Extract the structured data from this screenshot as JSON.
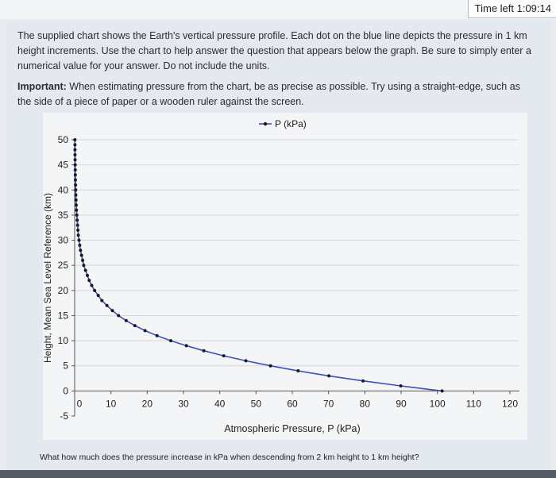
{
  "timer": {
    "label": "Time left 1:09:14"
  },
  "instructions": {
    "paragraph": "The supplied chart shows the Earth's vertical pressure profile. Each dot on the blue line depicts the pressure in 1 km height increments. Use the chart to help answer the question that appears below the graph. Be sure to simply enter a numerical value for your answer. Do not include the units.",
    "important_label": "Important:",
    "important_text": " When estimating pressure from the chart, be as precise as possible. Try using a straight-edge, such as the side of a piece of paper or a wooden ruler against the screen."
  },
  "question": "What how much does the pressure increase in kPa when descending from 2 km height to 1 km height?",
  "colors": {
    "series": "#3a4fc0",
    "grid": "#d5d8dc",
    "axis": "#555555"
  },
  "chart_data": {
    "type": "line",
    "title": "",
    "xlabel": "Atmospheric Pressure, P (kPa)",
    "ylabel": "Height, Mean Sea Level Reference (km)",
    "xlim": [
      0,
      120
    ],
    "ylim": [
      -5,
      50
    ],
    "x_ticks": [
      0,
      10,
      20,
      30,
      40,
      50,
      60,
      70,
      80,
      90,
      100,
      110,
      120
    ],
    "y_ticks": [
      -5,
      0,
      5,
      10,
      15,
      20,
      25,
      30,
      35,
      40,
      45,
      50
    ],
    "legend": "top",
    "grid": "horizontal",
    "series": [
      {
        "name": "P (kPa)",
        "x": [
          101.3,
          89.9,
          79.5,
          70.1,
          61.6,
          54.0,
          47.2,
          41.1,
          35.6,
          30.8,
          26.5,
          22.7,
          19.4,
          16.6,
          14.2,
          12.1,
          10.4,
          8.9,
          7.5,
          6.5,
          5.5,
          4.7,
          4.0,
          3.5,
          3.0,
          2.5,
          2.2,
          1.9,
          1.6,
          1.4,
          1.2,
          1.0,
          0.9,
          0.8,
          0.7,
          0.6,
          0.5,
          0.43,
          0.37,
          0.32,
          0.28,
          0.24,
          0.21,
          0.18,
          0.16,
          0.14,
          0.12,
          0.1,
          0.09,
          0.08,
          0.07
        ],
        "y": [
          0,
          1,
          2,
          3,
          4,
          5,
          6,
          7,
          8,
          9,
          10,
          11,
          12,
          13,
          14,
          15,
          16,
          17,
          18,
          19,
          20,
          21,
          22,
          23,
          24,
          25,
          26,
          27,
          28,
          29,
          30,
          31,
          32,
          33,
          34,
          35,
          36,
          37,
          38,
          39,
          40,
          41,
          42,
          43,
          44,
          45,
          46,
          47,
          48,
          49,
          50
        ]
      }
    ]
  }
}
